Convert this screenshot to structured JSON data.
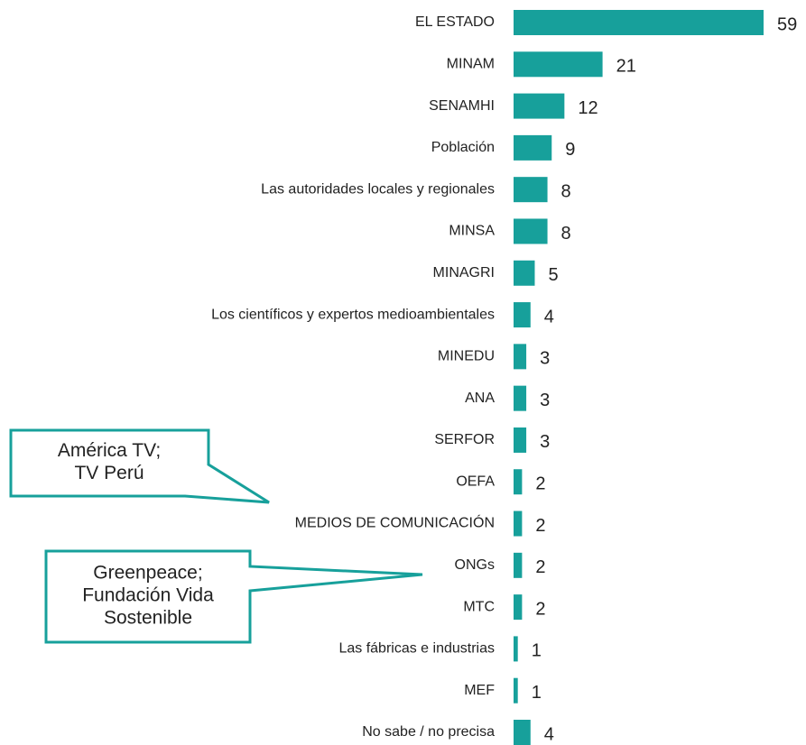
{
  "chart_data": {
    "type": "bar",
    "orientation": "horizontal",
    "categories": [
      "EL ESTADO",
      "MINAM",
      "SENAMHI",
      "Población",
      "Las autoridades locales y regionales",
      "MINSA",
      "MINAGRI",
      "Los científicos y expertos medioambientales",
      "MINEDU",
      "ANA",
      "SERFOR",
      "OEFA",
      "MEDIOS DE COMUNICACIÓN",
      "ONGs",
      "MTC",
      "Las fábricas e industrias",
      "MEF",
      "No sabe / no precisa"
    ],
    "values": [
      59,
      21,
      12,
      9,
      8,
      8,
      5,
      4,
      3,
      3,
      3,
      2,
      2,
      2,
      2,
      1,
      1,
      4
    ],
    "color": "#17a09b",
    "annotations": [
      [
        "América TV;",
        "TV Perú"
      ],
      [
        "Greenpeace;",
        "Fundación Vida",
        "Sostenible"
      ]
    ]
  }
}
